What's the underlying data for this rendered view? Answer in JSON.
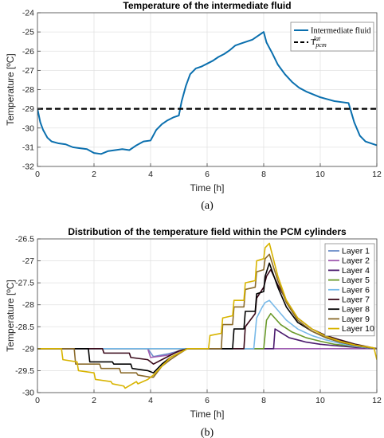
{
  "chart_data": [
    {
      "type": "line",
      "title": "Temperature of the intermediate fluid",
      "xlabel": "Time [h]",
      "ylabel": "Temperature [ºC]",
      "xlim": [
        0,
        12
      ],
      "ylim": [
        -32,
        -24
      ],
      "xticks": [
        "0",
        "2",
        "4",
        "6",
        "8",
        "10",
        "12"
      ],
      "yticks": [
        "-24",
        "-25",
        "-26",
        "-27",
        "-28",
        "-29",
        "-30",
        "-31",
        "-32"
      ],
      "grid": true,
      "legend_position": "top-right",
      "caption": "(a)",
      "series": [
        {
          "name": "Intermediate fluid",
          "color": "#0a6fae",
          "style": "solid",
          "x": [
            0,
            0.1,
            0.2,
            0.35,
            0.5,
            0.75,
            1.0,
            1.25,
            1.5,
            1.75,
            2.0,
            2.25,
            2.5,
            2.75,
            3.0,
            3.25,
            3.5,
            3.75,
            4.0,
            4.2,
            4.4,
            4.6,
            4.8,
            5.0,
            5.1,
            5.25,
            5.4,
            5.6,
            5.8,
            6.0,
            6.2,
            6.4,
            6.6,
            6.8,
            7.0,
            7.2,
            7.4,
            7.6,
            7.8,
            8.0,
            8.1,
            8.3,
            8.5,
            8.75,
            9.0,
            9.25,
            9.5,
            9.75,
            10.0,
            10.25,
            10.5,
            10.75,
            11.0,
            11.1,
            11.2,
            11.4,
            11.6,
            11.8,
            12.0
          ],
          "y": [
            -29.0,
            -29.7,
            -30.1,
            -30.5,
            -30.7,
            -30.8,
            -30.85,
            -31.0,
            -31.05,
            -31.1,
            -31.3,
            -31.35,
            -31.2,
            -31.15,
            -31.1,
            -31.15,
            -30.9,
            -30.7,
            -30.65,
            -30.1,
            -29.8,
            -29.6,
            -29.45,
            -29.35,
            -28.6,
            -27.8,
            -27.2,
            -26.9,
            -26.8,
            -26.65,
            -26.5,
            -26.3,
            -26.15,
            -25.95,
            -25.7,
            -25.6,
            -25.5,
            -25.4,
            -25.2,
            -25.0,
            -25.55,
            -26.1,
            -26.7,
            -27.2,
            -27.6,
            -27.9,
            -28.1,
            -28.25,
            -28.4,
            -28.5,
            -28.6,
            -28.65,
            -28.7,
            -29.2,
            -29.7,
            -30.4,
            -30.7,
            -30.8,
            -30.9
          ]
        },
        {
          "name": "T_pcm^lat",
          "color": "#000000",
          "style": "dashed",
          "x": [
            0,
            12
          ],
          "y": [
            -29,
            -29
          ]
        }
      ]
    },
    {
      "type": "line",
      "title": "Distribution of the temperature field within the PCM cylinders",
      "xlabel": "Time [h]",
      "ylabel": "Temperature [ºC]",
      "xlim": [
        0,
        12
      ],
      "ylim": [
        -30,
        -26.5
      ],
      "xticks": [
        "0",
        "2",
        "4",
        "6",
        "8",
        "10",
        "12"
      ],
      "yticks": [
        "-26.5",
        "-27",
        "-27.5",
        "-28",
        "-28.5",
        "-29",
        "-29.5",
        "-30"
      ],
      "grid": true,
      "legend_position": "right",
      "caption": "(b)",
      "series": [
        {
          "name": "Layer 1",
          "color": "#6a8cc9",
          "style": "solid",
          "x": [
            0,
            3.9,
            4.1,
            4.6,
            5.3,
            12.0
          ],
          "y": [
            -29,
            -29,
            -29.18,
            -29.12,
            -29.0,
            -29.0
          ]
        },
        {
          "name": "Layer 2",
          "color": "#a05bb0",
          "style": "solid",
          "x": [
            0,
            3.9,
            4.0,
            4.6,
            5.3,
            12.0
          ],
          "y": [
            -29,
            -29,
            -29.2,
            -29.15,
            -29.0,
            -29.0
          ]
        },
        {
          "name": "Layer 4",
          "color": "#4b1b6e",
          "style": "solid",
          "x": [
            0,
            8.35,
            8.4,
            8.9,
            9.5,
            10.0,
            10.5,
            11.25,
            12.0
          ],
          "y": [
            -29,
            -29,
            -28.55,
            -28.75,
            -28.85,
            -28.9,
            -28.93,
            -28.97,
            -29.0
          ]
        },
        {
          "name": "Layer 5",
          "color": "#6a9a2a",
          "style": "solid",
          "x": [
            0,
            8.0,
            8.1,
            8.25,
            8.6,
            9.0,
            9.5,
            10.0,
            10.5,
            11.25,
            12.0
          ],
          "y": [
            -29,
            -29,
            -28.35,
            -28.2,
            -28.45,
            -28.62,
            -28.75,
            -28.83,
            -28.9,
            -28.95,
            -29.0
          ]
        },
        {
          "name": "Layer 6",
          "color": "#78b9e8",
          "style": "solid",
          "x": [
            0,
            7.65,
            7.75,
            7.95,
            8.05,
            8.2,
            8.4,
            8.8,
            9.2,
            9.7,
            10.2,
            10.7,
            11.25,
            12.0
          ],
          "y": [
            -29,
            -29,
            -28.3,
            -28.05,
            -27.95,
            -27.9,
            -28.05,
            -28.35,
            -28.55,
            -28.7,
            -28.8,
            -28.88,
            -28.95,
            -29.0
          ]
        },
        {
          "name": "Layer 7",
          "color": "#3a0a1a",
          "style": "solid",
          "x": [
            0,
            2.3,
            2.35,
            3.25,
            3.3,
            3.9,
            4.1,
            4.4,
            4.7,
            5.0,
            5.3,
            7.3,
            7.35,
            7.7,
            7.75,
            8.0,
            8.1,
            8.25,
            8.5,
            8.8,
            9.2,
            9.7,
            10.2,
            10.7,
            11.25,
            12.0
          ],
          "y": [
            -29,
            -29,
            -29.1,
            -29.1,
            -29.2,
            -29.25,
            -29.35,
            -29.25,
            -29.15,
            -29.05,
            -29.0,
            -29.0,
            -28.5,
            -28.2,
            -27.85,
            -27.6,
            -27.35,
            -27.2,
            -27.55,
            -27.9,
            -28.3,
            -28.55,
            -28.7,
            -28.8,
            -28.9,
            -29.0
          ]
        },
        {
          "name": "Layer 8",
          "color": "#000000",
          "style": "solid",
          "x": [
            0,
            1.8,
            1.85,
            2.65,
            2.7,
            3.3,
            3.35,
            3.9,
            4.1,
            4.4,
            4.7,
            5.0,
            5.3,
            6.9,
            6.95,
            7.3,
            7.35,
            7.7,
            7.75,
            8.0,
            8.05,
            8.2,
            8.5,
            8.8,
            9.2,
            9.7,
            10.2,
            10.7,
            11.25,
            12.0
          ],
          "y": [
            -29,
            -29,
            -29.3,
            -29.3,
            -29.35,
            -29.35,
            -29.45,
            -29.5,
            -29.55,
            -29.35,
            -29.2,
            -29.1,
            -29.0,
            -29.0,
            -28.55,
            -28.55,
            -28.15,
            -28.15,
            -27.75,
            -27.7,
            -27.35,
            -27.05,
            -27.6,
            -28.05,
            -28.4,
            -28.6,
            -28.75,
            -28.85,
            -28.93,
            -29.0
          ]
        },
        {
          "name": "Layer 9",
          "color": "#8a6a2a",
          "style": "solid",
          "x": [
            0,
            1.3,
            1.35,
            2.2,
            2.25,
            2.9,
            2.95,
            3.5,
            3.55,
            4.0,
            4.1,
            4.4,
            4.7,
            5.0,
            5.3,
            6.5,
            6.55,
            6.9,
            6.95,
            7.3,
            7.35,
            7.7,
            7.75,
            8.0,
            8.05,
            8.2,
            8.5,
            8.8,
            9.2,
            9.7,
            10.2,
            10.7,
            11.25,
            12.0
          ],
          "y": [
            -29,
            -29,
            -29.35,
            -29.35,
            -29.45,
            -29.45,
            -29.55,
            -29.55,
            -29.6,
            -29.65,
            -29.65,
            -29.4,
            -29.25,
            -29.12,
            -29.0,
            -29.0,
            -28.45,
            -28.45,
            -28.05,
            -28.05,
            -27.65,
            -27.6,
            -27.25,
            -27.2,
            -26.95,
            -26.85,
            -27.45,
            -27.95,
            -28.35,
            -28.6,
            -28.75,
            -28.85,
            -28.93,
            -29.0
          ]
        },
        {
          "name": "Layer 10",
          "color": "#d8b400",
          "style": "solid",
          "x": [
            0,
            0.85,
            0.9,
            1.4,
            1.45,
            2.0,
            2.05,
            2.6,
            2.65,
            3.05,
            3.1,
            3.5,
            3.55,
            3.9,
            4.1,
            4.4,
            4.7,
            5.0,
            5.3,
            6.05,
            6.1,
            6.5,
            6.55,
            6.9,
            6.95,
            7.3,
            7.35,
            7.7,
            7.75,
            8.0,
            8.05,
            8.2,
            8.5,
            8.8,
            9.2,
            9.7,
            10.2,
            10.7,
            11.25,
            11.9,
            12.0
          ],
          "y": [
            -29,
            -29,
            -29.25,
            -29.3,
            -29.5,
            -29.55,
            -29.7,
            -29.75,
            -29.8,
            -29.85,
            -29.9,
            -29.75,
            -29.8,
            -29.7,
            -29.6,
            -29.4,
            -29.2,
            -29.1,
            -29.0,
            -29.0,
            -28.7,
            -28.65,
            -28.3,
            -28.25,
            -27.9,
            -27.9,
            -27.5,
            -27.45,
            -27.0,
            -26.95,
            -26.7,
            -26.6,
            -27.35,
            -27.9,
            -28.3,
            -28.55,
            -28.72,
            -28.83,
            -28.92,
            -28.98,
            -29.25
          ]
        }
      ]
    }
  ]
}
